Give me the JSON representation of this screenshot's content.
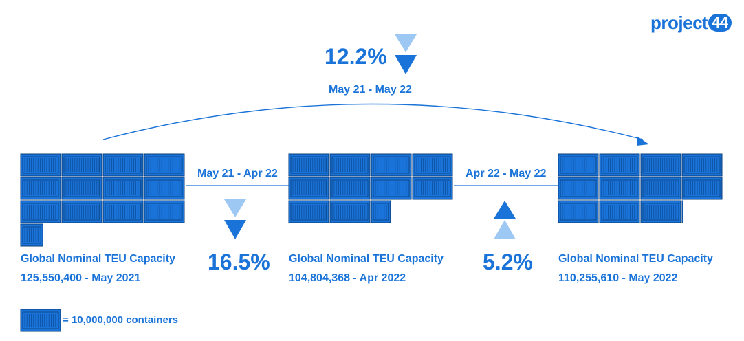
{
  "logo": {
    "text": "project",
    "badge": "44"
  },
  "top": {
    "percent": "12.2%",
    "period": "May 21 - May 22"
  },
  "left_link": {
    "period": "May 21 - Apr 22",
    "percent": "16.5%"
  },
  "right_link": {
    "period": "Apr 22 - May 22",
    "percent": "5.2%"
  },
  "groups": [
    {
      "title": "Global Nominal TEU Capacity",
      "value": "125,550,400 - May 2021",
      "containers": 12.555
    },
    {
      "title": "Global Nominal TEU Capacity",
      "value": "104,804,368 - Apr 2022",
      "containers": 10.48
    },
    {
      "title": "Global Nominal TEU Capacity",
      "value": "110,255,610 - May 2022",
      "containers": 11.026
    }
  ],
  "legend": {
    "text": "= 10,000,000 containers"
  },
  "colors": {
    "accent": "#1a73d8",
    "light": "#8dbff2"
  }
}
